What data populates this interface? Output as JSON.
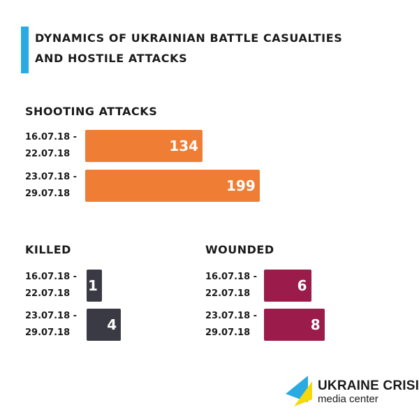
{
  "title_lines": [
    "Dynamics of Ukrainian battle casualties",
    "and hostile attacks"
  ],
  "logo": {
    "line1": "UKRAINE CRISIS",
    "line2": "media center"
  },
  "colors": {
    "accent": "#29abe2",
    "shooting": "#f07d34",
    "killed": "#3a3a45",
    "wounded": "#9b1b4b"
  },
  "chart_data": [
    {
      "type": "bar",
      "title": "Shooting attacks",
      "categories": [
        [
          "16.07.18 -",
          "22.07.18"
        ],
        [
          "23.07.18 -",
          "29.07.18"
        ]
      ],
      "values": [
        134,
        199
      ]
    },
    {
      "type": "bar",
      "title": "Killed",
      "categories": [
        [
          "16.07.18 -",
          "22.07.18"
        ],
        [
          "23.07.18 -",
          "29.07.18"
        ]
      ],
      "values": [
        1,
        4
      ]
    },
    {
      "type": "bar",
      "title": "Wounded",
      "categories": [
        [
          "16.07.18 -",
          "22.07.18"
        ],
        [
          "23.07.18 -",
          "29.07.18"
        ]
      ],
      "values": [
        6,
        8
      ]
    }
  ]
}
